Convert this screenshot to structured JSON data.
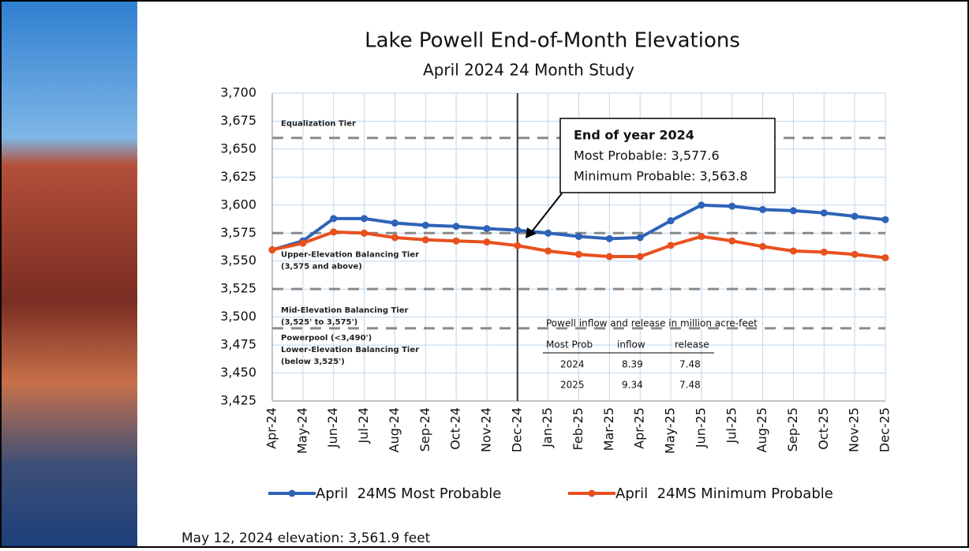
{
  "chart_data": {
    "type": "line",
    "title": "Lake Powell End-of-Month Elevations",
    "subtitle": "April 2024 24 Month Study",
    "categories": [
      "Apr-24",
      "May-24",
      "Jun-24",
      "Jul-24",
      "Aug-24",
      "Sep-24",
      "Oct-24",
      "Nov-24",
      "Dec-24",
      "Jan-25",
      "Feb-25",
      "Mar-25",
      "Apr-25",
      "May-25",
      "Jun-25",
      "Jul-25",
      "Aug-25",
      "Sep-25",
      "Oct-25",
      "Nov-25",
      "Dec-25"
    ],
    "series": [
      {
        "name": "April  24MS Most Probable",
        "color": "#2e63b8",
        "values": [
          3560,
          3568,
          3588,
          3588,
          3584,
          3582,
          3581,
          3579,
          3577.6,
          3575,
          3572,
          3570,
          3571,
          3586,
          3600,
          3599,
          3596,
          3595,
          3593,
          3590,
          3587
        ]
      },
      {
        "name": "April  24MS Minimum Probable",
        "color": "#e8501e",
        "values": [
          3560,
          3566,
          3576,
          3575,
          3571,
          3569,
          3568,
          3567,
          3563.8,
          3559,
          3556,
          3554,
          3554,
          3564,
          3572,
          3568,
          3563,
          3559,
          3558,
          3556,
          3553
        ]
      }
    ],
    "ylim": [
      3425,
      3700
    ],
    "yticks": [
      {
        "value": 3425,
        "label": "3,425"
      },
      {
        "value": 3450,
        "label": "3,450"
      },
      {
        "value": 3475,
        "label": "3,475"
      },
      {
        "value": 3500,
        "label": "3,500"
      },
      {
        "value": 3525,
        "label": "3,525"
      },
      {
        "value": 3550,
        "label": "3,550"
      },
      {
        "value": 3575,
        "label": "3,575"
      },
      {
        "value": 3600,
        "label": "3,600"
      },
      {
        "value": 3625,
        "label": "3,625"
      },
      {
        "value": 3650,
        "label": "3,650"
      },
      {
        "value": 3675,
        "label": "3,675"
      },
      {
        "value": 3700,
        "label": "3,700"
      }
    ],
    "grid": true,
    "reference_lines": [
      {
        "value": 3660,
        "label": "Equalization Tier"
      },
      {
        "value": 3575,
        "label": "Upper-Elevation Balancing Tier",
        "sublabel": "(3,575 and above)"
      },
      {
        "value": 3525,
        "label": "Mid-Elevation Balancing Tier",
        "sublabel": "(3,525' to 3,575')"
      },
      {
        "value": 3490,
        "label": "Lower-Elevation Balancing Tier",
        "sublabel": "(below 3,525')"
      }
    ],
    "powerpool_label": "Powerpool (<3,490')",
    "divider_category": "Dec-24",
    "annotation": {
      "title": "End of year 2024",
      "lines": [
        "Most Probable: 3,577.6",
        "Minimum Probable: 3,563.8"
      ]
    },
    "table": {
      "title": "Powell inflow and release in million acre-feet",
      "header": [
        "Most Prob",
        "inflow",
        "release"
      ],
      "rows": [
        [
          "2024",
          "8.39",
          "7.48"
        ],
        [
          "2025",
          "9.34",
          "7.48"
        ]
      ]
    }
  },
  "footer": "May 12, 2024 elevation: 3,561.9 feet"
}
